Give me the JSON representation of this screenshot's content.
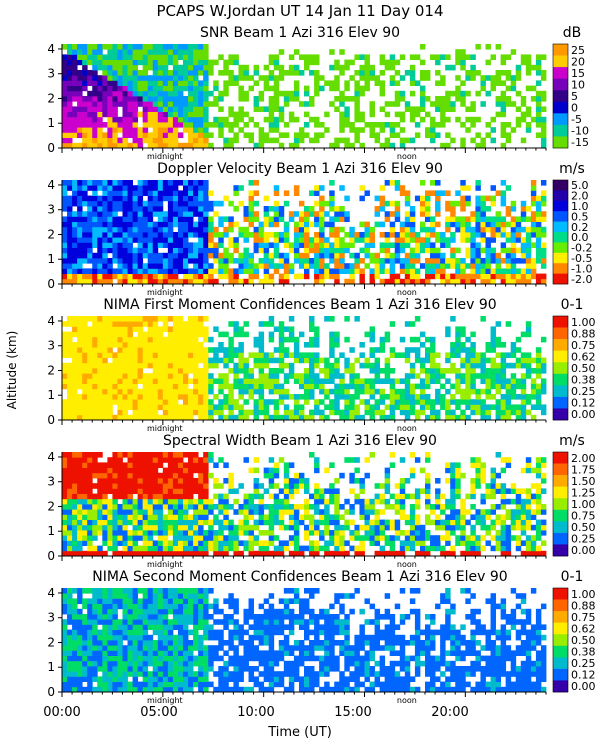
{
  "header": "PCAPS W.Jordan UT  14 Jan 11 Day 014",
  "y_axis_label": "Altitude (km)",
  "x_axis_label": "Time (UT)",
  "x_tick_labels": [
    "00:00",
    "05:00",
    "10:00",
    "15:00",
    "20:00"
  ],
  "marker_labels": {
    "midnight": "midnight",
    "noon": "noon"
  },
  "chart_data": [
    {
      "type": "heatmap",
      "title": "SNR Beam 1 Azi 316 Elev 90",
      "units": "dB",
      "xlabel": "Time (UT)",
      "ylabel": "Altitude (km)",
      "xlim": [
        0,
        24
      ],
      "ylim": [
        0,
        4.2
      ],
      "y_ticks": [
        "0",
        "1",
        "2",
        "3",
        "4"
      ],
      "colorbar_labels": [
        "25",
        "20",
        "15",
        "10",
        "5",
        "0",
        "-5",
        "-10",
        "-15"
      ],
      "colors": [
        "#ff9900",
        "#ffcc00",
        "#cc00cc",
        "#7700bb",
        "#330088",
        "#0000cc",
        "#0099ff",
        "#00cc99",
        "#66dd00"
      ]
    },
    {
      "type": "heatmap",
      "title": "Doppler Velocity Beam 1 Azi 316 Elev 90",
      "units": "m/s",
      "xlabel": "Time (UT)",
      "ylabel": "Altitude (km)",
      "xlim": [
        0,
        24
      ],
      "ylim": [
        0,
        4.2
      ],
      "y_ticks": [
        "0",
        "1",
        "2",
        "3",
        "4"
      ],
      "colorbar_labels": [
        "5.0",
        "2.0",
        "1.0",
        "0.5",
        "0.2",
        "0.0",
        "-0.2",
        "-0.5",
        "-1.0",
        "-2.0"
      ],
      "colors": [
        "#330066",
        "#2200aa",
        "#0000dd",
        "#0055ff",
        "#00bbff",
        "#00dd88",
        "#66ee00",
        "#ffee00",
        "#ff8800",
        "#ee1100"
      ]
    },
    {
      "type": "heatmap",
      "title": "NIMA First Moment Confidences Beam 1 Azi 316 Elev 90",
      "units": "0-1",
      "xlabel": "Time (UT)",
      "ylabel": "Altitude (km)",
      "xlim": [
        0,
        24
      ],
      "ylim": [
        0,
        4.2
      ],
      "y_ticks": [
        "0",
        "1",
        "2",
        "3",
        "4"
      ],
      "colorbar_labels": [
        "1.00",
        "0.88",
        "0.75",
        "0.62",
        "0.50",
        "0.38",
        "0.25",
        "0.12",
        "0.00"
      ],
      "colors": [
        "#ee1100",
        "#ff6600",
        "#ffaa00",
        "#ffee00",
        "#99ee00",
        "#00dd66",
        "#00bbcc",
        "#0066ff",
        "#3300aa"
      ]
    },
    {
      "type": "heatmap",
      "title": "Spectral Width Beam 1 Azi 316 Elev 90",
      "units": "m/s",
      "xlabel": "Time (UT)",
      "ylabel": "Altitude (km)",
      "xlim": [
        0,
        24
      ],
      "ylim": [
        0,
        4.2
      ],
      "y_ticks": [
        "0",
        "1",
        "2",
        "3",
        "4"
      ],
      "colorbar_labels": [
        "2.00",
        "1.75",
        "1.50",
        "1.25",
        "1.00",
        "0.75",
        "0.50",
        "0.25",
        "0.00"
      ],
      "colors": [
        "#ee1100",
        "#ff6600",
        "#ffaa00",
        "#ffee00",
        "#99ee00",
        "#00dd66",
        "#00bbcc",
        "#0066ff",
        "#3300aa"
      ]
    },
    {
      "type": "heatmap",
      "title": "NIMA Second Moment Confidences Beam 1 Azi 316 Elev 90",
      "units": "0-1",
      "xlabel": "Time (UT)",
      "ylabel": "Altitude (km)",
      "xlim": [
        0,
        24
      ],
      "ylim": [
        0,
        4.2
      ],
      "y_ticks": [
        "0",
        "1",
        "2",
        "3",
        "4"
      ],
      "colorbar_labels": [
        "1.00",
        "0.88",
        "0.75",
        "0.62",
        "0.50",
        "0.38",
        "0.25",
        "0.12",
        "0.00"
      ],
      "colors": [
        "#ee1100",
        "#ff6600",
        "#ffaa00",
        "#ffee00",
        "#99ee00",
        "#00dd66",
        "#00bbcc",
        "#0066ff",
        "#3300aa"
      ]
    }
  ]
}
